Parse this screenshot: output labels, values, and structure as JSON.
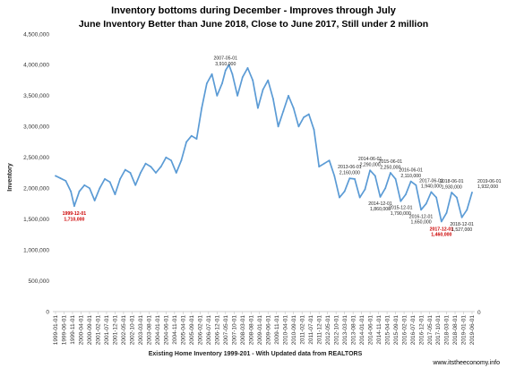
{
  "chart_data": {
    "type": "line",
    "title": "Inventory bottoms during  December - Improves through July",
    "subtitle": "June Inventory Better than June 2018, Close to June 2017, Still under 2 million",
    "xlabel": "Existing Home Inventory 1999-201 - With Updated data from REALTORS",
    "ylabel": "Inventory",
    "credit": "www.itstheeconomy.info",
    "ylim": [
      0,
      4500000
    ],
    "yticks": [
      0,
      500000,
      1000000,
      1500000,
      2000000,
      2500000,
      3000000,
      3500000,
      4000000,
      4500000
    ],
    "ytick_labels": [
      "0",
      "500,000",
      "1,000,000",
      "1,500,000",
      "2,000,000",
      "2,500,000",
      "3,000,000",
      "3,500,000",
      "4,000,000",
      "4,500,000"
    ],
    "x_start": "1999-01",
    "x_end": "2019-06",
    "xtick_labels": [
      "1999-01-01",
      "1999-06-01",
      "1999-11-01",
      "2000-04-01",
      "2000-09-01",
      "2001-02-01",
      "2001-07-01",
      "2001-12-01",
      "2002-05-01",
      "2002-10-01",
      "2003-03-01",
      "2003-08-01",
      "2004-01-01",
      "2004-06-01",
      "2004-11-01",
      "2005-04-01",
      "2005-09-01",
      "2006-02-01",
      "2006-07-01",
      "2006-12-01",
      "2007-05-01",
      "2007-10-01",
      "2008-03-01",
      "2008-08-01",
      "2009-01-01",
      "2009-06-01",
      "2009-11-01",
      "2010-04-01",
      "2010-09-01",
      "2011-02-01",
      "2011-07-01",
      "2011-12-01",
      "2012-05-01",
      "2012-10-01",
      "2013-03-01",
      "2013-08-01",
      "2014-01-01",
      "2014-06-01",
      "2014-11-01",
      "2015-04-01",
      "2015-09-01",
      "2016-02-01",
      "2016-07-01",
      "2016-12-01",
      "2017-05-01",
      "2017-10-01",
      "2018-03-01",
      "2018-08-01",
      "2019-01-01",
      "2019-06-01"
    ],
    "x_tail_label": "0",
    "x_tail_label_position": "right of the last date tick",
    "series": [
      {
        "color": "#5b9bd5",
        "points": [
          [
            "1999-01",
            2200000
          ],
          [
            "1999-04",
            2160000
          ],
          [
            "1999-07",
            2120000
          ],
          [
            "1999-10",
            1950000
          ],
          [
            "1999-12",
            1710000
          ],
          [
            "2000-03",
            1950000
          ],
          [
            "2000-06",
            2050000
          ],
          [
            "2000-09",
            2000000
          ],
          [
            "2000-12",
            1800000
          ],
          [
            "2001-03",
            2000000
          ],
          [
            "2001-06",
            2150000
          ],
          [
            "2001-09",
            2100000
          ],
          [
            "2001-12",
            1900000
          ],
          [
            "2002-03",
            2150000
          ],
          [
            "2002-06",
            2300000
          ],
          [
            "2002-09",
            2250000
          ],
          [
            "2002-12",
            2050000
          ],
          [
            "2003-03",
            2250000
          ],
          [
            "2003-06",
            2400000
          ],
          [
            "2003-09",
            2350000
          ],
          [
            "2003-12",
            2250000
          ],
          [
            "2004-03",
            2350000
          ],
          [
            "2004-06",
            2500000
          ],
          [
            "2004-09",
            2450000
          ],
          [
            "2004-12",
            2250000
          ],
          [
            "2005-03",
            2450000
          ],
          [
            "2005-06",
            2750000
          ],
          [
            "2005-09",
            2850000
          ],
          [
            "2005-12",
            2800000
          ],
          [
            "2006-03",
            3300000
          ],
          [
            "2006-06",
            3700000
          ],
          [
            "2006-09",
            3850000
          ],
          [
            "2006-12",
            3500000
          ],
          [
            "2007-03",
            3700000
          ],
          [
            "2007-05",
            3910000
          ],
          [
            "2007-07",
            4000000
          ],
          [
            "2007-09",
            3850000
          ],
          [
            "2007-12",
            3500000
          ],
          [
            "2008-03",
            3800000
          ],
          [
            "2008-06",
            3950000
          ],
          [
            "2008-09",
            3750000
          ],
          [
            "2008-12",
            3300000
          ],
          [
            "2009-03",
            3600000
          ],
          [
            "2009-06",
            3750000
          ],
          [
            "2009-09",
            3450000
          ],
          [
            "2009-12",
            3000000
          ],
          [
            "2010-03",
            3250000
          ],
          [
            "2010-06",
            3500000
          ],
          [
            "2010-09",
            3300000
          ],
          [
            "2010-12",
            3000000
          ],
          [
            "2011-03",
            3150000
          ],
          [
            "2011-06",
            3200000
          ],
          [
            "2011-09",
            2950000
          ],
          [
            "2011-12",
            2350000
          ],
          [
            "2012-03",
            2400000
          ],
          [
            "2012-06",
            2450000
          ],
          [
            "2012-09",
            2200000
          ],
          [
            "2012-12",
            1850000
          ],
          [
            "2013-03",
            1950000
          ],
          [
            "2013-06",
            2160000
          ],
          [
            "2013-09",
            2150000
          ],
          [
            "2013-12",
            1850000
          ],
          [
            "2014-03",
            1980000
          ],
          [
            "2014-06",
            2290000
          ],
          [
            "2014-09",
            2200000
          ],
          [
            "2014-12",
            1860000
          ],
          [
            "2015-03",
            2000000
          ],
          [
            "2015-06",
            2250000
          ],
          [
            "2015-09",
            2150000
          ],
          [
            "2015-12",
            1790000
          ],
          [
            "2016-03",
            1900000
          ],
          [
            "2016-06",
            2110000
          ],
          [
            "2016-09",
            2050000
          ],
          [
            "2016-12",
            1650000
          ],
          [
            "2017-03",
            1750000
          ],
          [
            "2017-06",
            1940000
          ],
          [
            "2017-09",
            1850000
          ],
          [
            "2017-12",
            1460000
          ],
          [
            "2018-03",
            1600000
          ],
          [
            "2018-06",
            1930000
          ],
          [
            "2018-09",
            1850000
          ],
          [
            "2018-12",
            1527000
          ],
          [
            "2019-03",
            1650000
          ],
          [
            "2019-06",
            1932000
          ]
        ]
      }
    ],
    "annotations": [
      {
        "date": "1999-12",
        "value": 1710000,
        "label": "1999-12-01",
        "value_label": "1,710,000",
        "color": "#cc0000"
      },
      {
        "date": "2007-05",
        "value": 3910000,
        "label": "2007-05-01",
        "value_label": "3,910,000",
        "color": "#222222"
      },
      {
        "date": "2013-06",
        "value": 2160000,
        "label": "2013-06-01",
        "value_label": "2,160,000",
        "color": "#222222"
      },
      {
        "date": "2014-06",
        "value": 2290000,
        "label": "2014-06-01",
        "value_label": "2,290,000",
        "color": "#222222"
      },
      {
        "date": "2014-12",
        "value": 1860000,
        "label": "2014-12-01",
        "value_label": "1,860,000",
        "color": "#222222"
      },
      {
        "date": "2015-06",
        "value": 2250000,
        "label": "2015-06-01",
        "value_label": "2,250,000",
        "color": "#222222"
      },
      {
        "date": "2015-12",
        "value": 1790000,
        "label": "2015-12-01",
        "value_label": "1,790,000",
        "color": "#222222"
      },
      {
        "date": "2016-06",
        "value": 2110000,
        "label": "2016-06-01",
        "value_label": "2,110,000",
        "color": "#222222"
      },
      {
        "date": "2016-12",
        "value": 1650000,
        "label": "2016-12-01",
        "value_label": "1,650,000",
        "color": "#222222"
      },
      {
        "date": "2017-06",
        "value": 1940000,
        "label": "2017-06-01",
        "value_label": "1,940,000",
        "color": "#222222"
      },
      {
        "date": "2017-12",
        "value": 1460000,
        "label": "2017-12-01",
        "value_label": "1,460,000",
        "color": "#cc0000"
      },
      {
        "date": "2018-06",
        "value": 1930000,
        "label": "2018-06-01",
        "value_label": "1,930,000",
        "color": "#222222"
      },
      {
        "date": "2018-12",
        "value": 1527000,
        "label": "2018-12-01",
        "value_label": "1,527,000",
        "color": "#222222"
      },
      {
        "date": "2019-06",
        "value": 1932000,
        "label": "2019-06-01",
        "value_label": "1,932,000",
        "color": "#222222"
      }
    ],
    "grid": false,
    "legend": "none"
  }
}
